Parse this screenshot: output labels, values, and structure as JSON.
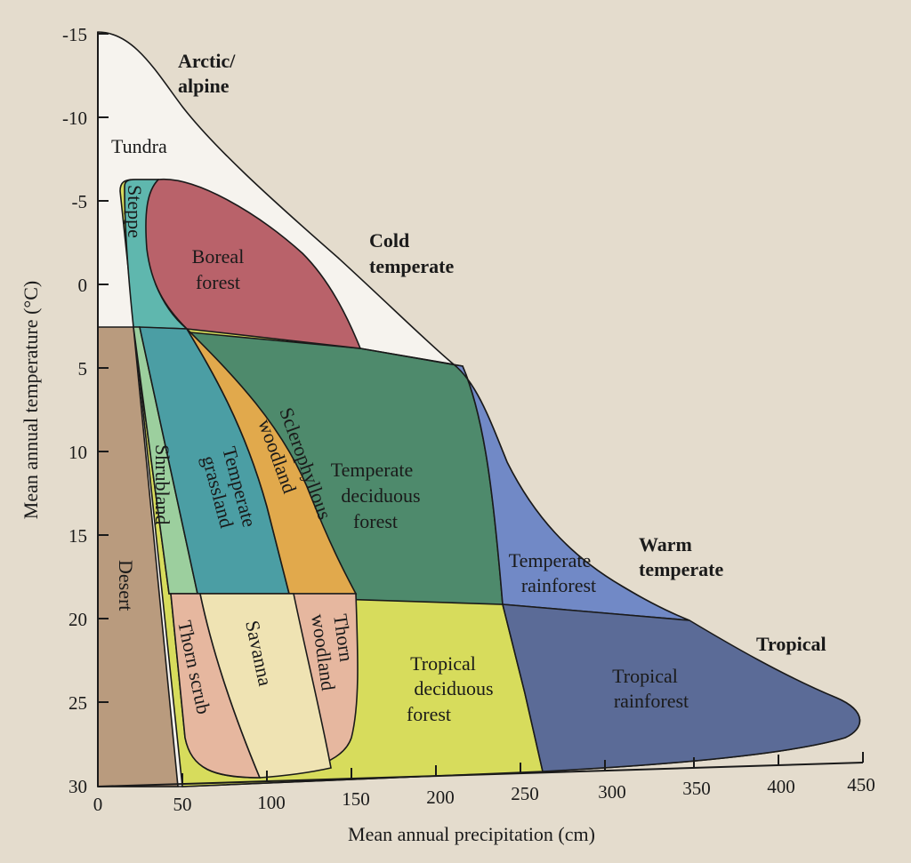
{
  "figure": {
    "x_axis_label": "Mean annual precipitation (cm)",
    "y_axis_label": "Mean annual temperature (°C)",
    "x_ticks": [
      "0",
      "50",
      "100",
      "150",
      "200",
      "250",
      "300",
      "350",
      "400",
      "450"
    ],
    "y_ticks": [
      "-15",
      "-10",
      "-5",
      "0",
      "5",
      "10",
      "15",
      "20",
      "25",
      "30"
    ],
    "zones": {
      "arctic": [
        "Arctic/",
        "alpine"
      ],
      "cold": [
        "Cold",
        "temperate"
      ],
      "warm": [
        "Warm",
        "temperate"
      ],
      "tropical": "Tropical"
    },
    "biomes": {
      "tundra": "Tundra",
      "steppe": "Steppe",
      "boreal": [
        "Boreal",
        "forest"
      ],
      "desert": "Desert",
      "shrubland": "Shrubland",
      "temperate_grassland": [
        "Temperate",
        "grassland"
      ],
      "sclerophyllous": [
        "Sclerophyllous",
        "woodland"
      ],
      "temperate_deciduous": [
        "Temperate",
        "deciduous",
        "forest"
      ],
      "temperate_rainforest": [
        "Temperate",
        "rainforest"
      ],
      "thorn_scrub": "Thorn scrub",
      "savanna": "Savanna",
      "thorn_woodland": [
        "Thorn",
        "woodland"
      ],
      "tropical_deciduous": [
        "Tropical",
        "deciduous",
        "forest"
      ],
      "tropical_rainforest": [
        "Tropical",
        "rainforest"
      ]
    },
    "colors": {
      "tundra": "#f6f3ee",
      "steppe": "#5fb7ae",
      "boreal": "#b9626a",
      "desert": "#b99b7e",
      "shrubland": "#9ccf9e",
      "temperate_grassland": "#4b9ea4",
      "sclerophyllous": "#e1a94c",
      "temperate_deciduous": "#4e8a6c",
      "temperate_rainforest": "#7189c6",
      "thorn": "#e6b79f",
      "savanna": "#efe3b3",
      "tropical_deciduous": "#d7dc5c",
      "tropical_rainforest": "#5b6b97"
    }
  }
}
